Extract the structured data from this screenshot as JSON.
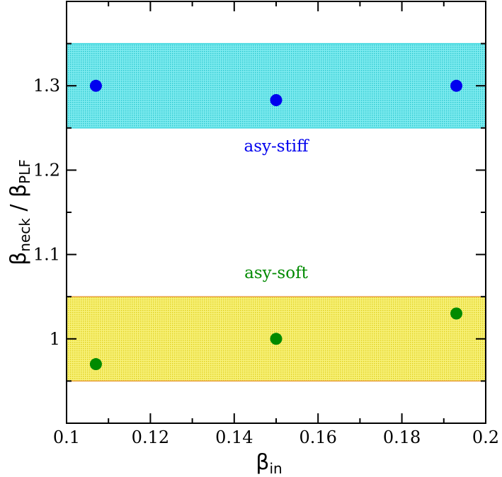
{
  "chart_data": {
    "type": "scatter",
    "title": "",
    "xlabel": {
      "main": "β",
      "sub": "in"
    },
    "ylabel": {
      "num_main": "β",
      "num_sub": "neck",
      "sep": " / ",
      "den_main": "β",
      "den_sub": "PLF"
    },
    "xlim": [
      0.1,
      0.2
    ],
    "ylim": [
      0.9,
      1.4
    ],
    "xticks": [
      0.1,
      0.12,
      0.14,
      0.16,
      0.18,
      0.2
    ],
    "xtick_labels": [
      "0.1",
      "0.12",
      "0.14",
      "0.16",
      "0.18",
      "0.2"
    ],
    "yticks": [
      1.0,
      1.1,
      1.2,
      1.3
    ],
    "ytick_labels": [
      "1",
      "1.1",
      "1.2",
      "1.3"
    ],
    "grid": false,
    "bands": [
      {
        "ymin": 1.25,
        "ymax": 1.35,
        "fill": "#40e0e8",
        "edge": "#3fd6de"
      },
      {
        "ymin": 0.95,
        "ymax": 1.05,
        "fill": "#f4ee30",
        "edge": "#e8a040"
      }
    ],
    "series": [
      {
        "color": "#0000ee",
        "x": [
          0.107,
          0.15,
          0.193
        ],
        "y": [
          1.3,
          1.283,
          1.3
        ]
      },
      {
        "color": "#008a00",
        "x": [
          0.107,
          0.15,
          0.193
        ],
        "y": [
          0.97,
          1.0,
          1.03
        ]
      }
    ],
    "annotations": [
      {
        "text": "asy-stiff",
        "x": 0.15,
        "y": 1.222,
        "color": "#0000ee"
      },
      {
        "text": "asy-soft",
        "x": 0.15,
        "y": 1.072,
        "color": "#008a00"
      }
    ]
  }
}
